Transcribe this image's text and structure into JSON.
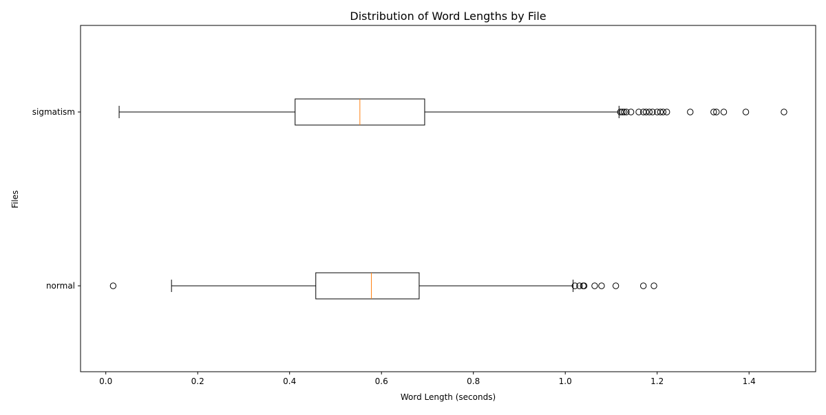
{
  "chart_data": {
    "type": "boxplot",
    "orientation": "horizontal",
    "title": "Distribution of Word Lengths by File",
    "xlabel": "Word Length (seconds)",
    "ylabel": "Files",
    "xlim": [
      -0.055,
      1.545
    ],
    "xticks": [
      0.0,
      0.2,
      0.4,
      0.6,
      0.8,
      1.0,
      1.2,
      1.4
    ],
    "xtick_labels": [
      "0.0",
      "0.2",
      "0.4",
      "0.6",
      "0.8",
      "1.0",
      "1.2",
      "1.4"
    ],
    "grid": false,
    "categories": [
      "normal",
      "sigmatism"
    ],
    "series": [
      {
        "name": "normal",
        "whisker_low": 0.143,
        "q1": 0.457,
        "median": 0.578,
        "q3": 0.682,
        "whisker_high": 1.017,
        "outliers": [
          0.016,
          1.021,
          1.031,
          1.039,
          1.041,
          1.064,
          1.079,
          1.11,
          1.17,
          1.193
        ]
      },
      {
        "name": "sigmatism",
        "whisker_low": 0.029,
        "q1": 0.412,
        "median": 0.553,
        "q3": 0.694,
        "whisker_high": 1.117,
        "outliers": [
          1.12,
          1.124,
          1.128,
          1.133,
          1.143,
          1.16,
          1.17,
          1.176,
          1.183,
          1.19,
          1.2,
          1.207,
          1.213,
          1.221,
          1.272,
          1.323,
          1.329,
          1.345,
          1.393,
          1.476
        ]
      }
    ],
    "colors": {
      "box_edge": "#000000",
      "median": "#ff7f0e",
      "outlier_edge": "#000000",
      "background": "#ffffff"
    }
  }
}
